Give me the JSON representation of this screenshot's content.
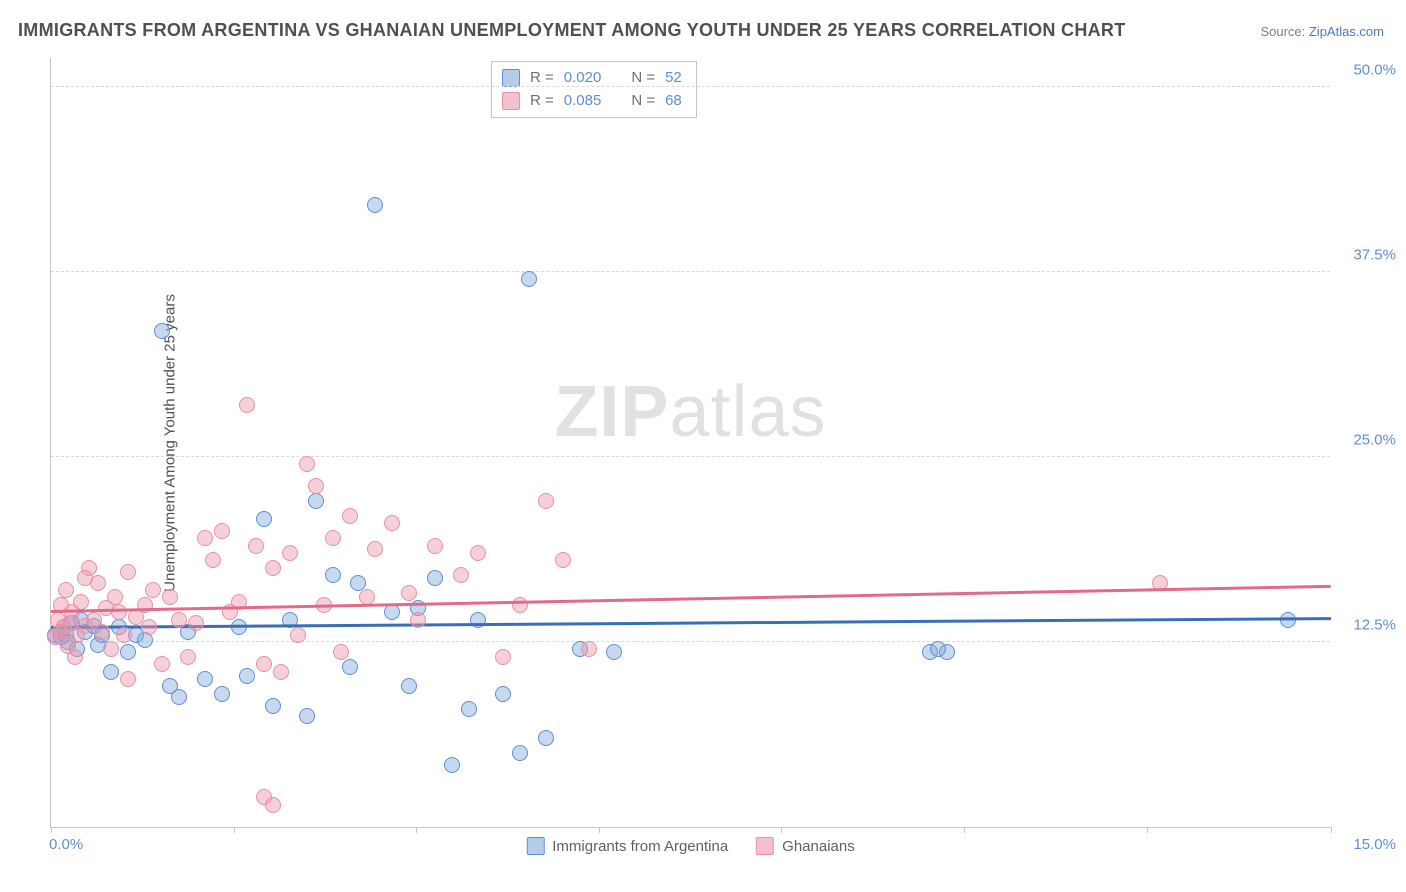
{
  "title": "IMMIGRANTS FROM ARGENTINA VS GHANAIAN UNEMPLOYMENT AMONG YOUTH UNDER 25 YEARS CORRELATION CHART",
  "source_prefix": "Source: ",
  "source_link": "ZipAtlas.com",
  "y_axis_title": "Unemployment Among Youth under 25 years",
  "watermark_bold": "ZIP",
  "watermark_rest": "atlas",
  "chart": {
    "type": "scatter",
    "background_color": "#ffffff",
    "grid_color": "#d8d8d8",
    "xlim": [
      0.0,
      15.0
    ],
    "ylim": [
      0.0,
      52.0
    ],
    "x_tick_positions": [
      0.0,
      2.14,
      4.28,
      6.42,
      8.56,
      10.7,
      12.84,
      15.0
    ],
    "x_labels": {
      "min": "0.0%",
      "max": "15.0%"
    },
    "y_ticks": [
      {
        "v": 12.5,
        "label": "12.5%"
      },
      {
        "v": 25.0,
        "label": "25.0%"
      },
      {
        "v": 37.5,
        "label": "37.5%"
      },
      {
        "v": 50.0,
        "label": "50.0%"
      }
    ],
    "marker_radius": 8,
    "series": [
      {
        "id": "s1",
        "label": "Immigrants from Argentina",
        "fill_color": "rgba(130,170,220,0.45)",
        "stroke_color": "#5e8fd4",
        "r_value": "0.020",
        "n_value": "52",
        "trend": {
          "y_at_xmin": 13.4,
          "y_at_xmax": 14.0
        },
        "points": [
          [
            0.05,
            13.0
          ],
          [
            0.1,
            13.2
          ],
          [
            0.12,
            12.8
          ],
          [
            0.15,
            13.5
          ],
          [
            0.18,
            13.0
          ],
          [
            0.2,
            12.5
          ],
          [
            0.25,
            13.8
          ],
          [
            0.3,
            12.0
          ],
          [
            0.35,
            14.0
          ],
          [
            0.4,
            13.2
          ],
          [
            0.5,
            13.6
          ],
          [
            0.55,
            12.3
          ],
          [
            0.6,
            13.0
          ],
          [
            0.7,
            10.5
          ],
          [
            0.8,
            13.5
          ],
          [
            0.9,
            11.8
          ],
          [
            1.0,
            13.0
          ],
          [
            1.1,
            12.6
          ],
          [
            1.3,
            33.5
          ],
          [
            1.4,
            9.5
          ],
          [
            1.5,
            8.8
          ],
          [
            1.6,
            13.2
          ],
          [
            1.8,
            10.0
          ],
          [
            2.0,
            9.0
          ],
          [
            2.2,
            13.5
          ],
          [
            2.3,
            10.2
          ],
          [
            2.5,
            20.8
          ],
          [
            2.6,
            8.2
          ],
          [
            2.8,
            14.0
          ],
          [
            3.0,
            7.5
          ],
          [
            3.1,
            22.0
          ],
          [
            3.3,
            17.0
          ],
          [
            3.5,
            10.8
          ],
          [
            3.6,
            16.5
          ],
          [
            3.8,
            42.0
          ],
          [
            4.0,
            14.5
          ],
          [
            4.2,
            9.5
          ],
          [
            4.3,
            14.8
          ],
          [
            4.5,
            16.8
          ],
          [
            4.7,
            4.2
          ],
          [
            4.9,
            8.0
          ],
          [
            5.0,
            14.0
          ],
          [
            5.3,
            9.0
          ],
          [
            5.5,
            5.0
          ],
          [
            5.6,
            37.0
          ],
          [
            5.8,
            6.0
          ],
          [
            6.2,
            12.0
          ],
          [
            6.6,
            11.8
          ],
          [
            10.3,
            11.8
          ],
          [
            10.5,
            11.8
          ],
          [
            10.4,
            12.0
          ],
          [
            14.5,
            14.0
          ]
        ]
      },
      {
        "id": "s2",
        "label": "Ghanaians",
        "fill_color": "rgba(235,150,170,0.45)",
        "stroke_color": "#e890a8",
        "r_value": "0.085",
        "n_value": "68",
        "trend": {
          "y_at_xmin": 14.5,
          "y_at_xmax": 16.2
        },
        "points": [
          [
            0.05,
            12.8
          ],
          [
            0.08,
            14.0
          ],
          [
            0.1,
            13.2
          ],
          [
            0.12,
            15.0
          ],
          [
            0.15,
            13.5
          ],
          [
            0.18,
            16.0
          ],
          [
            0.2,
            12.2
          ],
          [
            0.22,
            13.8
          ],
          [
            0.25,
            14.5
          ],
          [
            0.28,
            11.5
          ],
          [
            0.3,
            13.0
          ],
          [
            0.35,
            15.2
          ],
          [
            0.4,
            13.6
          ],
          [
            0.45,
            17.5
          ],
          [
            0.5,
            14.0
          ],
          [
            0.55,
            16.5
          ],
          [
            0.6,
            13.2
          ],
          [
            0.65,
            14.8
          ],
          [
            0.7,
            12.0
          ],
          [
            0.75,
            15.5
          ],
          [
            0.8,
            14.5
          ],
          [
            0.85,
            13.0
          ],
          [
            0.9,
            10.0
          ],
          [
            1.0,
            14.2
          ],
          [
            1.1,
            15.0
          ],
          [
            1.15,
            13.5
          ],
          [
            1.2,
            16.0
          ],
          [
            1.3,
            11.0
          ],
          [
            1.4,
            15.5
          ],
          [
            1.5,
            14.0
          ],
          [
            1.6,
            11.5
          ],
          [
            1.7,
            13.8
          ],
          [
            1.8,
            19.5
          ],
          [
            1.9,
            18.0
          ],
          [
            2.0,
            20.0
          ],
          [
            2.1,
            14.5
          ],
          [
            2.2,
            15.2
          ],
          [
            2.3,
            28.5
          ],
          [
            2.4,
            19.0
          ],
          [
            2.5,
            11.0
          ],
          [
            2.6,
            17.5
          ],
          [
            2.7,
            10.5
          ],
          [
            2.8,
            18.5
          ],
          [
            2.9,
            13.0
          ],
          [
            3.0,
            24.5
          ],
          [
            3.1,
            23.0
          ],
          [
            3.2,
            15.0
          ],
          [
            3.3,
            19.5
          ],
          [
            3.4,
            11.8
          ],
          [
            3.5,
            21.0
          ],
          [
            3.7,
            15.5
          ],
          [
            3.8,
            18.8
          ],
          [
            4.0,
            20.5
          ],
          [
            4.2,
            15.8
          ],
          [
            4.3,
            14.0
          ],
          [
            4.5,
            19.0
          ],
          [
            4.8,
            17.0
          ],
          [
            5.0,
            18.5
          ],
          [
            5.3,
            11.5
          ],
          [
            5.5,
            15.0
          ],
          [
            5.8,
            22.0
          ],
          [
            6.0,
            18.0
          ],
          [
            6.3,
            12.0
          ],
          [
            2.5,
            2.0
          ],
          [
            2.6,
            1.5
          ],
          [
            13.0,
            16.5
          ],
          [
            0.4,
            16.8
          ],
          [
            0.9,
            17.2
          ]
        ]
      }
    ]
  },
  "legend_labels": {
    "r": "R =",
    "n": "N ="
  }
}
